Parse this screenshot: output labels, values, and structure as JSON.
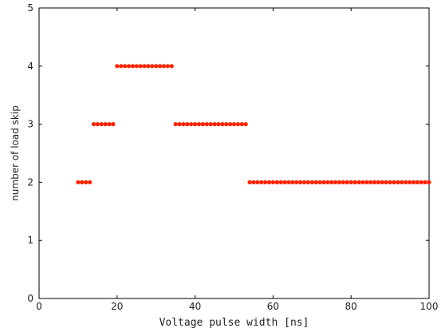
{
  "chart_data": {
    "type": "scatter",
    "xlabel": "Voltage pulse width [ns]",
    "ylabel": "number of load skip",
    "xlim": [
      0,
      100
    ],
    "ylim": [
      0,
      5
    ],
    "xticks": [
      0,
      20,
      40,
      60,
      80,
      100
    ],
    "yticks": [
      0,
      1,
      2,
      3,
      4,
      5
    ],
    "grid": false,
    "marker_color": "#ff2200",
    "series": [
      {
        "x": [
          10,
          11,
          12,
          13,
          14,
          15,
          16,
          17,
          18,
          19,
          20,
          21,
          22,
          23,
          24,
          25,
          26,
          27,
          28,
          29,
          30,
          31,
          32,
          33,
          34,
          35,
          36,
          37,
          38,
          39,
          40,
          41,
          42,
          43,
          44,
          45,
          46,
          47,
          48,
          49,
          50,
          51,
          52,
          53,
          54,
          55,
          56,
          57,
          58,
          59,
          60,
          61,
          62,
          63,
          64,
          65,
          66,
          67,
          68,
          69,
          70,
          71,
          72,
          73,
          74,
          75,
          76,
          77,
          78,
          79,
          80,
          81,
          82,
          83,
          84,
          85,
          86,
          87,
          88,
          89,
          90,
          91,
          92,
          93,
          94,
          95,
          96,
          97,
          98,
          99,
          100
        ],
        "y": [
          2,
          2,
          2,
          2,
          3,
          3,
          3,
          3,
          3,
          3,
          4,
          4,
          4,
          4,
          4,
          4,
          4,
          4,
          4,
          4,
          4,
          4,
          4,
          4,
          4,
          3,
          3,
          3,
          3,
          3,
          3,
          3,
          3,
          3,
          3,
          3,
          3,
          3,
          3,
          3,
          3,
          3,
          3,
          3,
          2,
          2,
          2,
          2,
          2,
          2,
          2,
          2,
          2,
          2,
          2,
          2,
          2,
          2,
          2,
          2,
          2,
          2,
          2,
          2,
          2,
          2,
          2,
          2,
          2,
          2,
          2,
          2,
          2,
          2,
          2,
          2,
          2,
          2,
          2,
          2,
          2,
          2,
          2,
          2,
          2,
          2,
          2,
          2,
          2,
          2,
          2
        ]
      }
    ]
  }
}
